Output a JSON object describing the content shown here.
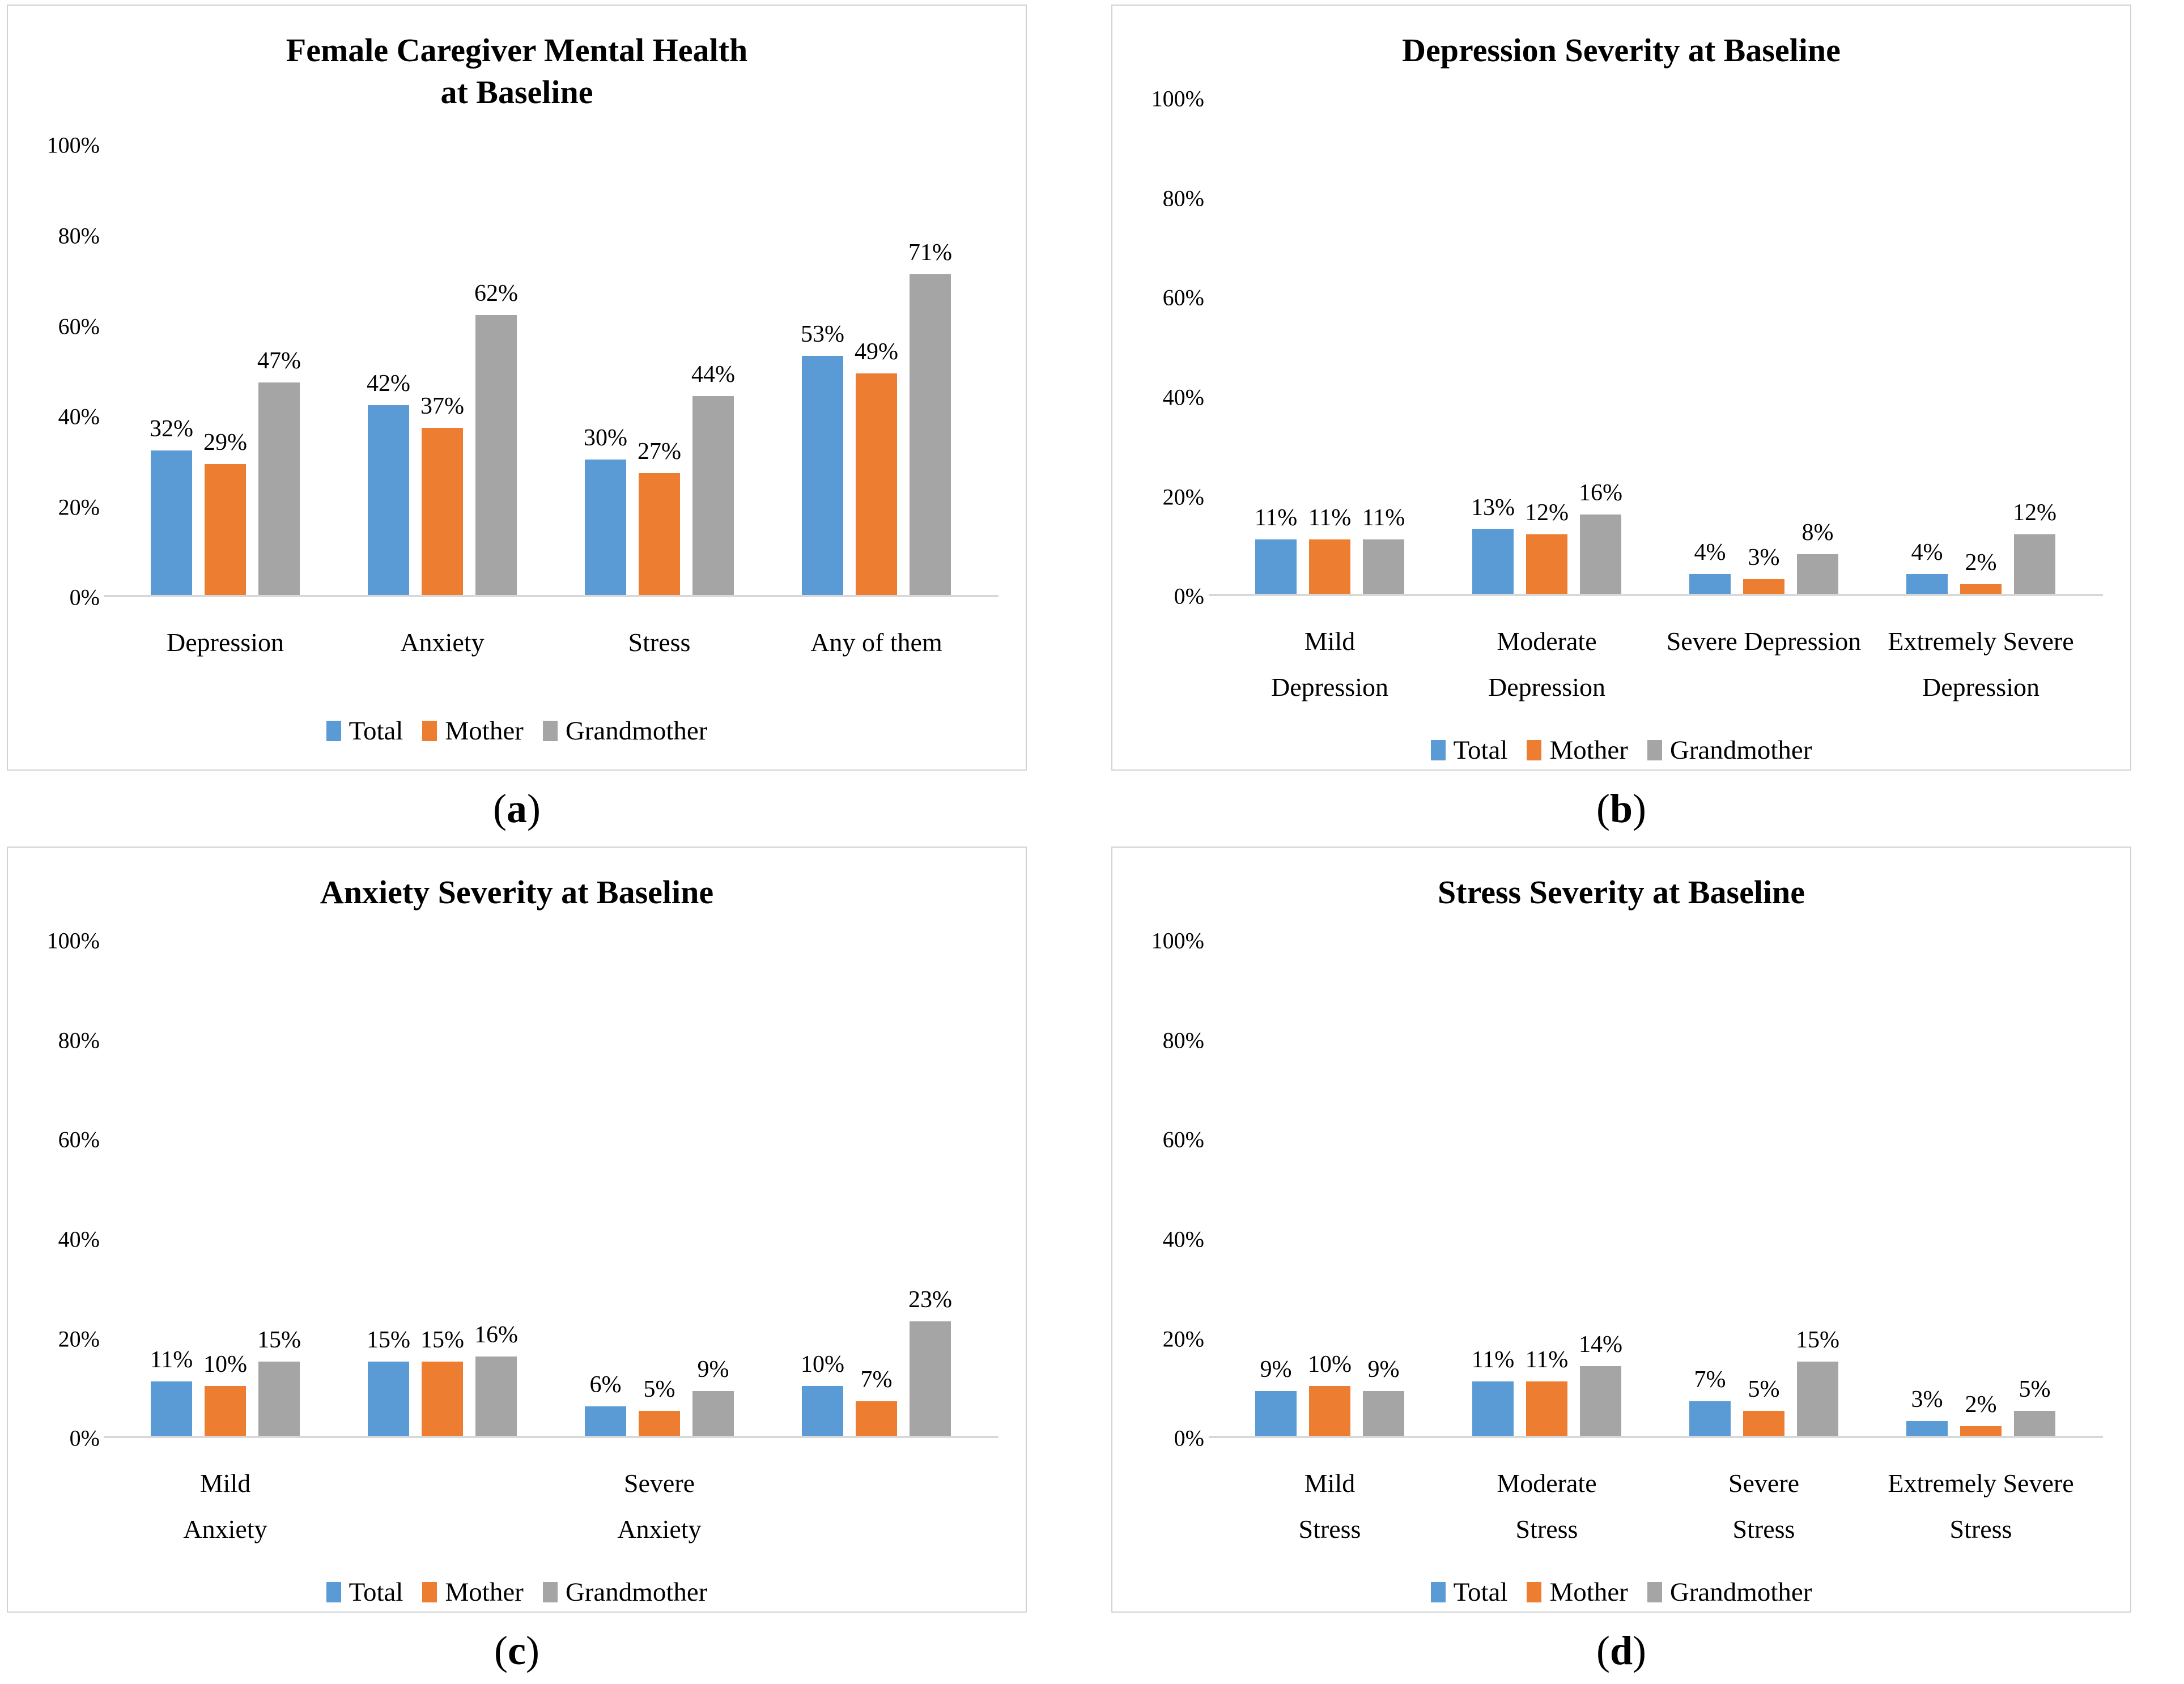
{
  "captions": {
    "open": "(",
    "close": ")"
  },
  "colors": {
    "total": "#5B9BD5",
    "mother": "#ED7D31",
    "grandmother": "#A5A5A5",
    "axis_line": "#D8D8D8",
    "panel_border": "#D2D2D2"
  },
  "chart_data": [
    {
      "type": "bar",
      "letter": "a",
      "title": "Female Caregiver Mental Health\nat Baseline",
      "xlabel": "",
      "ylabel": "",
      "ylim": [
        0,
        100
      ],
      "yticks": [
        "100%",
        "80%",
        "60%",
        "40%",
        "20%",
        "0%"
      ],
      "value_suffix": "%",
      "grid": false,
      "legend_position": "bottom",
      "categories": [
        "Depression",
        "Anxiety",
        "Stress",
        "Any of them"
      ],
      "series": [
        {
          "name": "Total",
          "color": "#5B9BD5",
          "values": [
            32,
            42,
            30,
            53
          ]
        },
        {
          "name": "Mother",
          "color": "#ED7D31",
          "values": [
            29,
            37,
            27,
            49
          ]
        },
        {
          "name": "Grandmother",
          "color": "#A5A5A5",
          "values": [
            47,
            62,
            44,
            71
          ]
        }
      ]
    },
    {
      "type": "bar",
      "letter": "b",
      "title": "Depression Severity at Baseline",
      "xlabel": "",
      "ylabel": "",
      "ylim": [
        0,
        100
      ],
      "yticks": [
        "100%",
        "80%",
        "60%",
        "40%",
        "20%",
        "0%"
      ],
      "value_suffix": "%",
      "grid": false,
      "legend_position": "bottom",
      "categories": [
        "Mild\nDepression",
        "Moderate\nDepression",
        "Severe Depression",
        "Extremely Severe\nDepression"
      ],
      "series": [
        {
          "name": "Total",
          "color": "#5B9BD5",
          "values": [
            11,
            13,
            4,
            4
          ]
        },
        {
          "name": "Mother",
          "color": "#ED7D31",
          "values": [
            11,
            12,
            3,
            2
          ]
        },
        {
          "name": "Grandmother",
          "color": "#A5A5A5",
          "values": [
            11,
            16,
            8,
            12
          ]
        }
      ]
    },
    {
      "type": "bar",
      "letter": "c",
      "title": "Anxiety Severity at Baseline",
      "xlabel": "",
      "ylabel": "",
      "ylim": [
        0,
        100
      ],
      "yticks": [
        "100%",
        "80%",
        "60%",
        "40%",
        "20%",
        "0%"
      ],
      "value_suffix": "%",
      "grid": false,
      "legend_position": "bottom",
      "categories": [
        "Mild\nAnxiety",
        "",
        "Severe\nAnxiety",
        ""
      ],
      "series": [
        {
          "name": "Total",
          "color": "#5B9BD5",
          "values": [
            11,
            15,
            6,
            10
          ]
        },
        {
          "name": "Mother",
          "color": "#ED7D31",
          "values": [
            10,
            15,
            5,
            7
          ]
        },
        {
          "name": "Grandmother",
          "color": "#A5A5A5",
          "values": [
            15,
            16,
            9,
            23
          ]
        }
      ]
    },
    {
      "type": "bar",
      "letter": "d",
      "title": "Stress Severity at Baseline",
      "xlabel": "",
      "ylabel": "",
      "ylim": [
        0,
        100
      ],
      "yticks": [
        "100%",
        "80%",
        "60%",
        "40%",
        "20%",
        "0%"
      ],
      "value_suffix": "%",
      "grid": false,
      "legend_position": "bottom",
      "categories": [
        "Mild\nStress",
        "Moderate\nStress",
        "Severe\nStress",
        "Extremely Severe\nStress"
      ],
      "series": [
        {
          "name": "Total",
          "color": "#5B9BD5",
          "values": [
            9,
            11,
            7,
            3
          ]
        },
        {
          "name": "Mother",
          "color": "#ED7D31",
          "values": [
            10,
            11,
            5,
            2
          ]
        },
        {
          "name": "Grandmother",
          "color": "#A5A5A5",
          "values": [
            9,
            14,
            15,
            5
          ]
        }
      ]
    }
  ]
}
